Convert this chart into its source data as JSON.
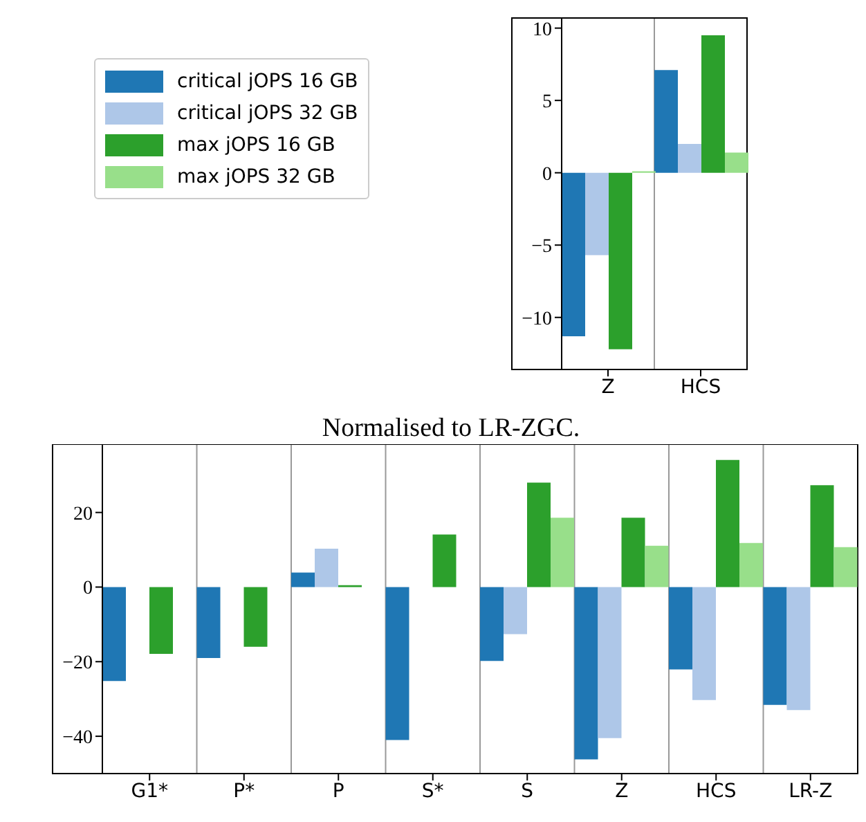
{
  "chart_data": [
    {
      "type": "bar",
      "categories": [
        "Z",
        "HCS"
      ],
      "series": [
        {
          "name": "critical jOPS 16 GB",
          "color": "#1f77b4",
          "values": [
            -11.3,
            7.1
          ]
        },
        {
          "name": "critical jOPS 32 GB",
          "color": "#aec7e8",
          "values": [
            -5.7,
            2.0
          ]
        },
        {
          "name": "max jOPS 16 GB",
          "color": "#2ca02c",
          "values": [
            -12.2,
            9.5
          ]
        },
        {
          "name": "max jOPS 32 GB",
          "color": "#98df8a",
          "values": [
            0.1,
            1.4
          ]
        }
      ],
      "ylim": [
        -13.6,
        10.7
      ],
      "yticks": [
        {
          "value": -10,
          "label": "−10"
        },
        {
          "value": -5,
          "label": "−5"
        },
        0,
        5,
        10
      ],
      "grid": "x",
      "legend": "left"
    },
    {
      "type": "bar",
      "title": "Normalised to LR-ZGC.",
      "categories": [
        "G1*",
        "P*",
        "P",
        "S*",
        "S",
        "Z",
        "HCS",
        "LR-Z"
      ],
      "series": [
        {
          "color": "#1f77b4",
          "values": [
            -25.2,
            -19,
            3.9,
            -41,
            -19.8,
            -46.2,
            -22.1,
            -31.6
          ]
        },
        {
          "color": "#aec7e8",
          "values": [
            0,
            0,
            10.3,
            0,
            -12.6,
            -40.5,
            -30.3,
            -33.0
          ]
        },
        {
          "color": "#2ca02c",
          "values": [
            -17.9,
            -16,
            0.5,
            14.1,
            28.0,
            18.6,
            34.1,
            27.3
          ]
        },
        {
          "color": "#98df8a",
          "values": [
            0,
            0,
            0,
            0,
            18.6,
            11.1,
            11.8,
            10.7
          ]
        }
      ],
      "ylim": [
        -50,
        38.3
      ],
      "yticks": [
        {
          "value": -40,
          "label": "−40"
        },
        {
          "value": -20,
          "label": "−20"
        },
        0,
        20
      ],
      "grid": "x",
      "legend": false
    }
  ]
}
